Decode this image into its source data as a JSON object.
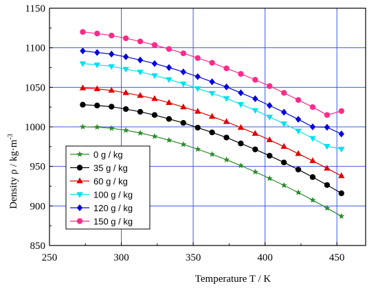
{
  "chart_data": {
    "type": "line",
    "xlabel": "Temperature   T / K",
    "ylabel": "Density   ρ / kg·m",
    "ylabel_superscript": "-3",
    "xlim": [
      250,
      470
    ],
    "ylim": [
      850,
      1150
    ],
    "x_ticks": [
      250,
      300,
      350,
      400,
      450
    ],
    "y_ticks": [
      850,
      900,
      950,
      1000,
      1050,
      1100,
      1150
    ],
    "grid": true,
    "grid_color": "#3b5bdb",
    "legend_position": "lower-left",
    "x": [
      273.15,
      283.15,
      293.15,
      303.15,
      313.15,
      323.15,
      333.15,
      343.15,
      353.15,
      363.15,
      373.15,
      383.15,
      393.15,
      403.15,
      413.15,
      423.15,
      433.15,
      443.15,
      453.15
    ],
    "series": [
      {
        "name": "0  g / kg",
        "color": "#2a8a2a",
        "marker": "star",
        "values": [
          1000,
          999.7,
          998.2,
          995.7,
          992.2,
          988.0,
          983.2,
          977.8,
          971.8,
          965.3,
          958.4,
          951.0,
          943.1,
          934.8,
          926.1,
          917.0,
          907.4,
          897.3,
          887.0
        ]
      },
      {
        "name": "35  g / kg",
        "color": "#000000",
        "marker": "circle",
        "values": [
          1028,
          1027,
          1025.5,
          1022.5,
          1019,
          1015,
          1010,
          1005,
          999,
          993,
          986.5,
          979,
          971.5,
          963.5,
          955,
          946,
          936.5,
          926.5,
          916
        ]
      },
      {
        "name": "60  g / kg",
        "color": "#e00000",
        "marker": "triangle-up",
        "values": [
          1049,
          1048,
          1046,
          1043,
          1039.5,
          1035.5,
          1030.5,
          1025,
          1019.5,
          1013,
          1006.5,
          999,
          991.5,
          983.5,
          975,
          966,
          957,
          947.5,
          938
        ]
      },
      {
        "name": "100  g / kg",
        "color": "#00e0f0",
        "marker": "triangle-down",
        "values": [
          1080,
          1078.5,
          1076.5,
          1073,
          1069.5,
          1065,
          1060,
          1054.5,
          1048.5,
          1042.5,
          1036,
          1028.5,
          1021,
          1012.5,
          1004,
          995,
          985.5,
          975.5,
          972
        ]
      },
      {
        "name": "120  g / kg",
        "color": "#0000e0",
        "marker": "diamond",
        "values": [
          1096,
          1094,
          1092,
          1088.5,
          1084.5,
          1080,
          1075,
          1069.5,
          1063.5,
          1057,
          1050.5,
          1043,
          1035.5,
          1027,
          1018.5,
          1009.5,
          1000,
          999.5,
          991
        ]
      },
      {
        "name": "150  g / kg",
        "color": "#ff2a8a",
        "marker": "circle",
        "values": [
          1120,
          1118,
          1115.5,
          1112,
          1108,
          1103.5,
          1098.5,
          1093,
          1087,
          1081,
          1074,
          1067,
          1059.5,
          1051.5,
          1043,
          1034,
          1025,
          1015,
          1020
        ]
      }
    ]
  }
}
